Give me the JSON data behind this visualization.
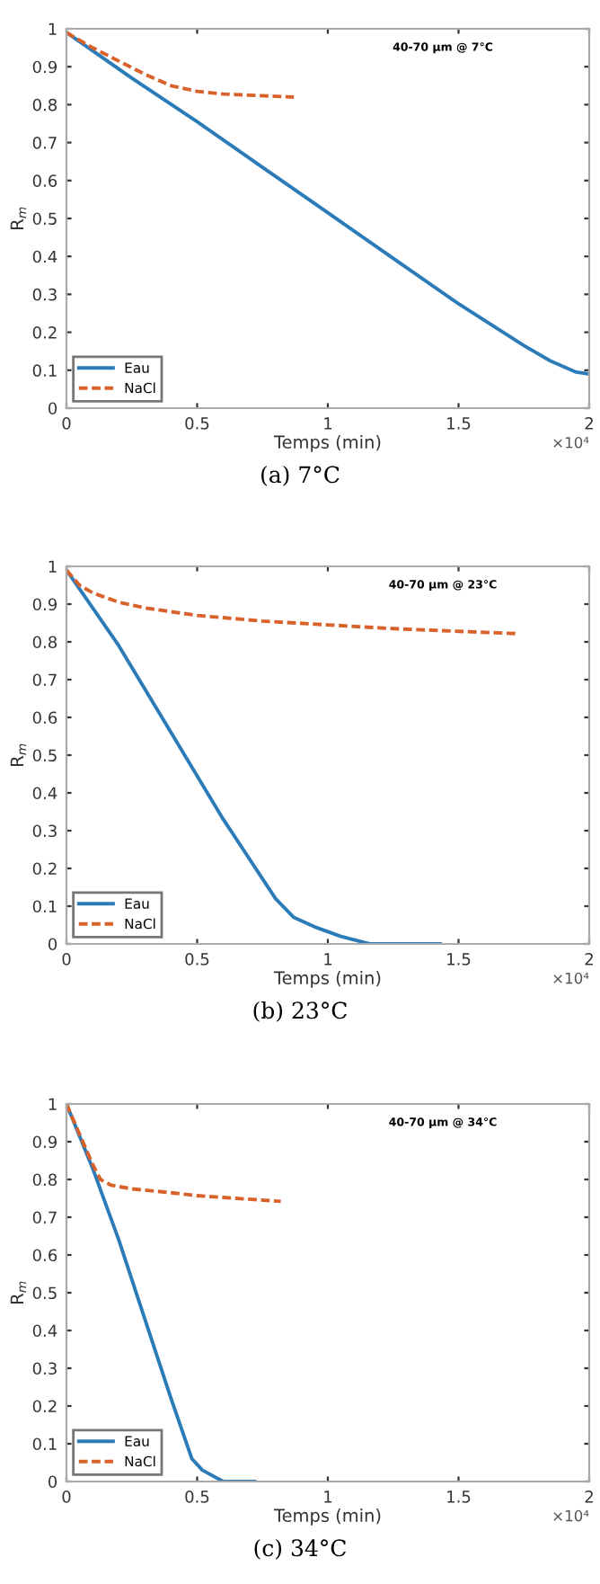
{
  "chart_data": [
    {
      "type": "line",
      "title": "40-70 μm @ 7°C",
      "xlabel": "Temps (min)",
      "ylabel": "R$_{m}$",
      "annotations": [
        "×10⁴",
        "(a) 7°C"
      ],
      "legend": "bottom left",
      "grid": false,
      "xlim": [
        0,
        2
      ],
      "xticks": [
        0,
        0.5,
        1,
        1.5,
        2
      ],
      "ylim": [
        0,
        1
      ],
      "yticks": [
        0,
        0.1,
        0.2,
        0.3,
        0.4,
        0.5,
        0.6,
        0.7,
        0.8,
        0.9,
        1
      ],
      "series": [
        {
          "name": "Eau",
          "color": "#2b7bb9",
          "line_style": "solid",
          "x": [
            0,
            0.25,
            0.5,
            0.75,
            1,
            1.25,
            1.5,
            1.75,
            1.85,
            1.95,
            2
          ],
          "values": [
            0.99,
            0.87,
            0.755,
            0.635,
            0.515,
            0.395,
            0.275,
            0.165,
            0.125,
            0.095,
            0.09
          ]
        },
        {
          "name": "NaCl",
          "color": "#d9622b",
          "line_style": "dashed",
          "x": [
            0,
            0.1,
            0.2,
            0.3,
            0.4,
            0.5,
            0.6,
            0.7,
            0.8,
            0.87
          ],
          "values": [
            0.99,
            0.95,
            0.915,
            0.88,
            0.85,
            0.835,
            0.828,
            0.825,
            0.822,
            0.82
          ]
        }
      ]
    },
    {
      "type": "line",
      "title": "40-70 μm @ 23°C",
      "xlabel": "Temps (min)",
      "ylabel": "R$_{m}$",
      "annotations": [
        "×10⁴",
        "(b) 23°C"
      ],
      "legend": "bottom left",
      "grid": false,
      "xlim": [
        0,
        2
      ],
      "xticks": [
        0,
        0.5,
        1,
        1.5,
        2
      ],
      "ylim": [
        0,
        1
      ],
      "yticks": [
        0,
        0.1,
        0.2,
        0.3,
        0.4,
        0.5,
        0.6,
        0.7,
        0.8,
        0.9,
        1
      ],
      "series": [
        {
          "name": "Eau",
          "color": "#2b7bb9",
          "line_style": "solid",
          "x": [
            0,
            0.2,
            0.4,
            0.6,
            0.8,
            0.87,
            0.95,
            1.05,
            1.16,
            1.43
          ],
          "values": [
            0.99,
            0.79,
            0.56,
            0.33,
            0.12,
            0.07,
            0.045,
            0.02,
            0,
            0
          ]
        },
        {
          "name": "NaCl",
          "color": "#d9622b",
          "line_style": "dashed",
          "x": [
            0,
            0.05,
            0.1,
            0.2,
            0.3,
            0.5,
            0.75,
            1,
            1.25,
            1.5,
            1.72
          ],
          "values": [
            0.99,
            0.95,
            0.93,
            0.905,
            0.89,
            0.87,
            0.855,
            0.845,
            0.835,
            0.828,
            0.822
          ]
        }
      ]
    },
    {
      "type": "line",
      "title": "40-70 μm @ 34°C",
      "xlabel": "Temps (min)",
      "ylabel": "R$_{m}$",
      "annotations": [
        "×10⁴",
        "(c) 34°C"
      ],
      "legend": "bottom left",
      "grid": false,
      "xlim": [
        0,
        2
      ],
      "xticks": [
        0,
        0.5,
        1,
        1.5,
        2
      ],
      "ylim": [
        0,
        1
      ],
      "yticks": [
        0,
        0.1,
        0.2,
        0.3,
        0.4,
        0.5,
        0.6,
        0.7,
        0.8,
        0.9,
        1
      ],
      "series": [
        {
          "name": "Eau",
          "color": "#2b7bb9",
          "line_style": "solid",
          "x": [
            0,
            0.1,
            0.2,
            0.3,
            0.4,
            0.48,
            0.52,
            0.6,
            0.72
          ],
          "values": [
            1,
            0.83,
            0.64,
            0.43,
            0.22,
            0.06,
            0.03,
            0,
            0
          ]
        },
        {
          "name": "NaCl",
          "color": "#d9622b",
          "line_style": "dashed",
          "x": [
            0,
            0.05,
            0.1,
            0.13,
            0.17,
            0.25,
            0.4,
            0.5,
            0.65,
            0.82
          ],
          "values": [
            1,
            0.92,
            0.84,
            0.8,
            0.785,
            0.775,
            0.765,
            0.757,
            0.75,
            0.742
          ]
        }
      ]
    }
  ]
}
